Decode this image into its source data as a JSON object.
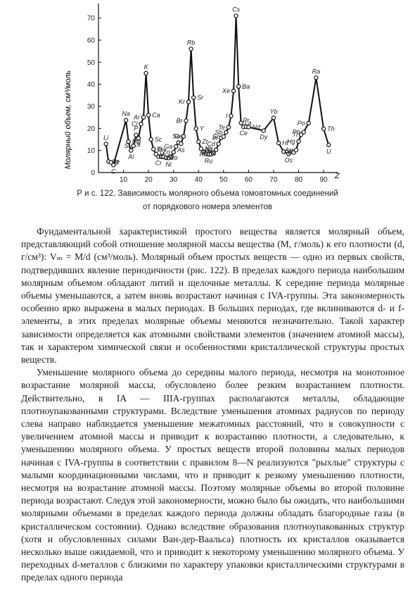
{
  "chart_data": {
    "type": "line",
    "ylabel": "Молярный объем, см³/моль",
    "xlabel": "Z",
    "xlim": [
      0,
      100
    ],
    "ylim": [
      0,
      75
    ],
    "xticks": [
      "10",
      "20",
      "30",
      "40",
      "50",
      "60",
      "70",
      "80",
      "90"
    ],
    "yticks": [
      "0",
      "10",
      "20",
      "30",
      "40",
      "50",
      "60",
      "70"
    ],
    "points": [
      {
        "z": 3,
        "v": 13.0,
        "label": "Li"
      },
      {
        "z": 4,
        "v": 5.0,
        "label": "Be"
      },
      {
        "z": 5,
        "v": 4.6,
        "label": "B"
      },
      {
        "z": 6,
        "v": 3.4,
        "label": "C"
      },
      {
        "z": 11,
        "v": 23.7,
        "label": "Na"
      },
      {
        "z": 12,
        "v": 14.0,
        "label": "Mg"
      },
      {
        "z": 13,
        "v": 10.0,
        "label": "Al"
      },
      {
        "z": 14,
        "v": 12.1,
        "label": "Si"
      },
      {
        "z": 15,
        "v": 17.0,
        "label": "P"
      },
      {
        "z": 16,
        "v": 15.5,
        "label": "S"
      },
      {
        "z": 17,
        "v": 22.0,
        "label": "Cl"
      },
      {
        "z": 18,
        "v": 25.0,
        "label": "Ar"
      },
      {
        "z": 19,
        "v": 45.0,
        "label": "K"
      },
      {
        "z": 20,
        "v": 26.0,
        "label": "Ca"
      },
      {
        "z": 21,
        "v": 15.0,
        "label": "Sc"
      },
      {
        "z": 22,
        "v": 10.6,
        "label": "Ti"
      },
      {
        "z": 23,
        "v": 8.3,
        "label": "V"
      },
      {
        "z": 24,
        "v": 7.2,
        "label": "Cr"
      },
      {
        "z": 25,
        "v": 7.4,
        "label": "Mn"
      },
      {
        "z": 26,
        "v": 7.1,
        "label": "Fe"
      },
      {
        "z": 27,
        "v": 6.7,
        "label": "Co"
      },
      {
        "z": 28,
        "v": 6.6,
        "label": "Ni"
      },
      {
        "z": 29,
        "v": 7.1,
        "label": "Cu"
      },
      {
        "z": 30,
        "v": 9.2,
        "label": "Zn"
      },
      {
        "z": 31,
        "v": 11.8,
        "label": "Ga"
      },
      {
        "z": 32,
        "v": 13.6,
        "label": "Ge"
      },
      {
        "z": 33,
        "v": 13.1,
        "label": "As"
      },
      {
        "z": 34,
        "v": 16.4,
        "label": "Se"
      },
      {
        "z": 35,
        "v": 23.5,
        "label": "Br"
      },
      {
        "z": 36,
        "v": 32.0,
        "label": "Kr"
      },
      {
        "z": 37,
        "v": 56.0,
        "label": "Rb"
      },
      {
        "z": 38,
        "v": 34.0,
        "label": "Sr"
      },
      {
        "z": 39,
        "v": 19.9,
        "label": "Y"
      },
      {
        "z": 40,
        "v": 14.0,
        "label": "Zr"
      },
      {
        "z": 41,
        "v": 10.8,
        "label": "Nb"
      },
      {
        "z": 42,
        "v": 9.4,
        "label": "Mo"
      },
      {
        "z": 43,
        "v": 8.6,
        "label": "Tc"
      },
      {
        "z": 44,
        "v": 8.2,
        "label": "Ru"
      },
      {
        "z": 45,
        "v": 8.3,
        "label": "Rh"
      },
      {
        "z": 46,
        "v": 8.9,
        "label": "Pd"
      },
      {
        "z": 47,
        "v": 10.3,
        "label": "Ag"
      },
      {
        "z": 48,
        "v": 13.0,
        "label": "Cd"
      },
      {
        "z": 49,
        "v": 15.7,
        "label": "In"
      },
      {
        "z": 50,
        "v": 16.3,
        "label": "Sn"
      },
      {
        "z": 51,
        "v": 18.2,
        "label": "Sb"
      },
      {
        "z": 52,
        "v": 20.5,
        "label": "Te"
      },
      {
        "z": 53,
        "v": 25.7,
        "label": "I"
      },
      {
        "z": 54,
        "v": 37.0,
        "label": "Xe"
      },
      {
        "z": 55,
        "v": 71.0,
        "label": "Cs"
      },
      {
        "z": 56,
        "v": 39.0,
        "label": "Ba"
      },
      {
        "z": 57,
        "v": 22.5,
        "label": "La"
      },
      {
        "z": 58,
        "v": 20.7,
        "label": "Ce"
      },
      {
        "z": 59,
        "v": 20.8,
        "label": "Pr"
      },
      {
        "z": 60,
        "v": 20.6,
        "label": "Nd"
      },
      {
        "z": 66,
        "v": 19.0,
        "label": "Dy"
      },
      {
        "z": 70,
        "v": 24.8,
        "label": "Yb"
      },
      {
        "z": 72,
        "v": 13.4,
        "label": "Hf"
      },
      {
        "z": 74,
        "v": 9.5,
        "label": "W"
      },
      {
        "z": 76,
        "v": 8.4,
        "label": "Os"
      },
      {
        "z": 78,
        "v": 9.1,
        "label": "Pt"
      },
      {
        "z": 79,
        "v": 10.2,
        "label": "Au"
      },
      {
        "z": 80,
        "v": 14.1,
        "label": "Hg"
      },
      {
        "z": 81,
        "v": 17.2,
        "label": "Tl"
      },
      {
        "z": 82,
        "v": 18.3,
        "label": "Pb"
      },
      {
        "z": 84,
        "v": 22.4,
        "label": "Po"
      },
      {
        "z": 87,
        "v": 43.0,
        "label": "Ra"
      },
      {
        "z": 90,
        "v": 19.8,
        "label": "Th"
      },
      {
        "z": 92,
        "v": 12.5,
        "label": "U"
      }
    ]
  },
  "figure": {
    "caption_line1": "Р и с.  122.  Зависимость молярного объема гомоатомных соединений",
    "caption_line2": "от порядкового номера элементов"
  },
  "text": {
    "paragraphs": [
      "Фундаментальной характеристикой простого вещества является молярный объем, представляющий собой отношение молярной массы вещества (M, г/моль) к его плотности (d, г/см³): Vₘ = M/d (см³/моль). Молярный объем простых веществ — одно из первых свойств, подтвердивших явление периодичности (рис. 122). В пределах каждого периода наибольшим молярным объемом обладают литий и щелочные металлы. К середине периода молярные объемы уменьшаются, а затем вновь возрастают начиная с IVA-группы. Эта закономерность особенно ярко выражена в малых периодах. В больших периодах, где вклиниваются d- и f-элементы, в этих пределах молярные объемы меняются незначительно. Такой характер зависимости определяется как атомными свойствами элементов (значением атомной массы), так и характером химической связи и особенностями кристаллической структуры простых веществ.",
      "Уменьшение молярного объема до середины малого периода, несмотря на монотонное возрастание молярной массы, обусловлено более резким возрастанием плотности. Действительно, в IA — IIIA-группах располагаются металлы, обладающие плотноупакованными структурами. Вследствие уменьшения атомных радиусов по периоду слева направо наблюдается уменьшение межатомных расстояний, что в совокупности с увеличением атомной массы и приводит к возрастанию плотности, а следовательно, к уменьшению молярного объема. У простых веществ второй половины малых периодов начиная с IVA-группы в соответствии с правилом 8—N реализуются \"рыхлые\" структуры с малыми координационными числами, что и приводит к резкому уменьшению плотности, несмотря на возрастание атомной массы. Поэтому молярные объемы во второй половине периода возрастают. Следуя этой закономерности, можно было бы ожидать, что наибольшими молярными объемами в пределах каждого периода должны обладать благородные газы (в кристаллическом состоянии). Однако вследствие образования плотноупакованных структур (хотя и обусловленных силами Ван-дер-Ваальса) плотность их кристаллов оказывается несколько выше ожидаемой, что и приводит к некоторому уменьшению молярного объема. У переходных d-металлов с близкими по характеру упаковки кристаллическими структурами в пределах одного периода"
    ]
  }
}
